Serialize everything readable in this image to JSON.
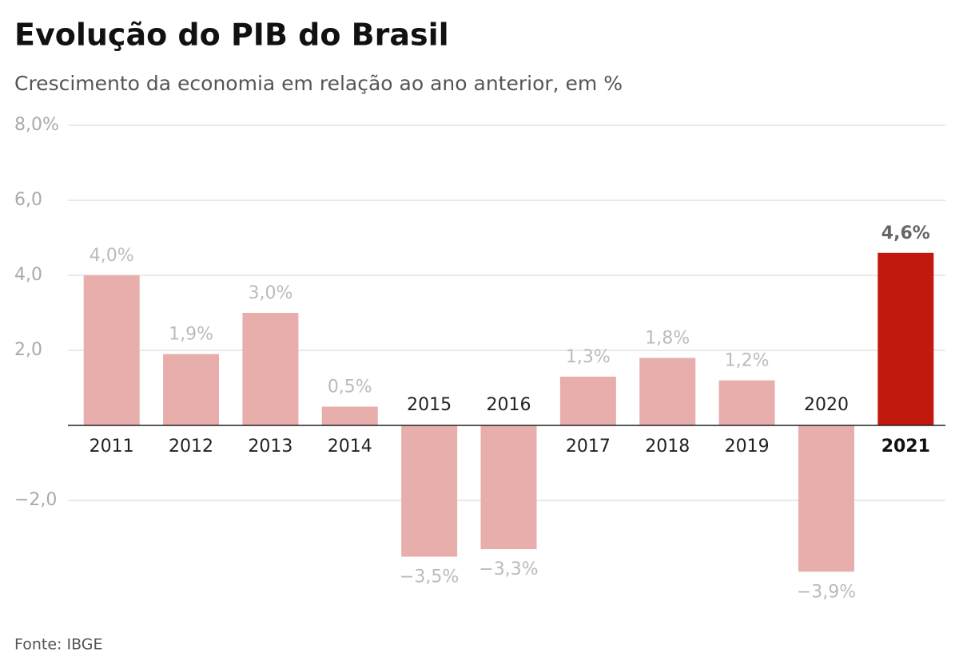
{
  "chart_data": {
    "type": "bar",
    "title": "Evolução do PIB do Brasil",
    "subtitle": "Crescimento da economia em relação ao ano anterior, em %",
    "source": "Fonte: IBGE",
    "categories": [
      "2011",
      "2012",
      "2013",
      "2014",
      "2015",
      "2016",
      "2017",
      "2018",
      "2019",
      "2020",
      "2021"
    ],
    "values": [
      4.0,
      1.9,
      3.0,
      0.5,
      -3.5,
      -3.3,
      1.3,
      1.8,
      1.2,
      -3.9,
      4.6
    ],
    "value_labels": [
      "4,0%",
      "1,9%",
      "3,0%",
      "0,5%",
      "−3,5%",
      "−3,3%",
      "1,3%",
      "1,8%",
      "1,2%",
      "−3,9%",
      "4,6%"
    ],
    "color": "#e8aeab",
    "colors": [
      "#e8aeab",
      "#e8aeab",
      "#e8aeab",
      "#e8aeab",
      "#e8aeab",
      "#e8aeab",
      "#e8aeab",
      "#e8aeab",
      "#e8aeab",
      "#e8aeab",
      "#c2180d"
    ],
    "ylim": [
      -4,
      8
    ],
    "yticks": [
      {
        "value": 8,
        "label": "8,0%"
      },
      {
        "value": 6,
        "label": "6,0"
      },
      {
        "value": 4,
        "label": "4,0"
      },
      {
        "value": 2,
        "label": "2,0"
      },
      {
        "value": -2,
        "label": "−2,0"
      }
    ],
    "grid": true
  }
}
